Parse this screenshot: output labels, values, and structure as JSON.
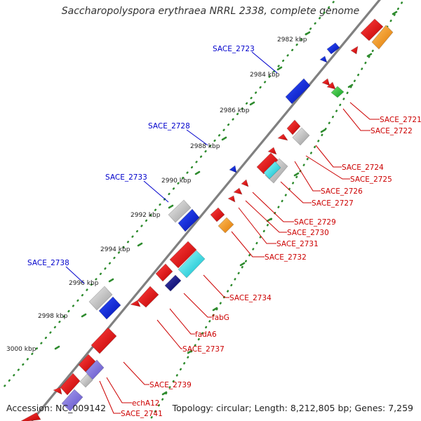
{
  "title": "Saccharopolyspora erythraea NRRL 2338, complete genome",
  "footer": {
    "accession": "Accession: NC_009142",
    "summary": "Topology: circular; Length: 8,212,805 bp; Genes: 7,259"
  },
  "ticks": [
    "2982 kbp",
    "2984 kbp",
    "2986 kbp",
    "2988 kbp",
    "2990 kbp",
    "2992 kbp",
    "2994 kbp",
    "2996 kbp",
    "2998 kbp",
    "3000 kbp"
  ],
  "gene_labels_forward": [
    "SACE_2723",
    "SACE_2728",
    "SACE_2733",
    "SACE_2738"
  ],
  "gene_labels_reverse": [
    "SACE_2721",
    "SACE_2722",
    "SACE_2724",
    "SACE_2725",
    "SACE_2726",
    "SACE_2727",
    "SACE_2729",
    "SACE_2730",
    "SACE_2731",
    "SACE_2732",
    "SACE_2734",
    "fabG",
    "fadA6",
    "SACE_2737",
    "SACE_2739",
    "echA12",
    "SACE_2741"
  ],
  "colors": {
    "backbone": "#888888",
    "forward_label": "#0000cc",
    "reverse_label": "#cc0000",
    "tick_dots": "#2e8b2e"
  }
}
